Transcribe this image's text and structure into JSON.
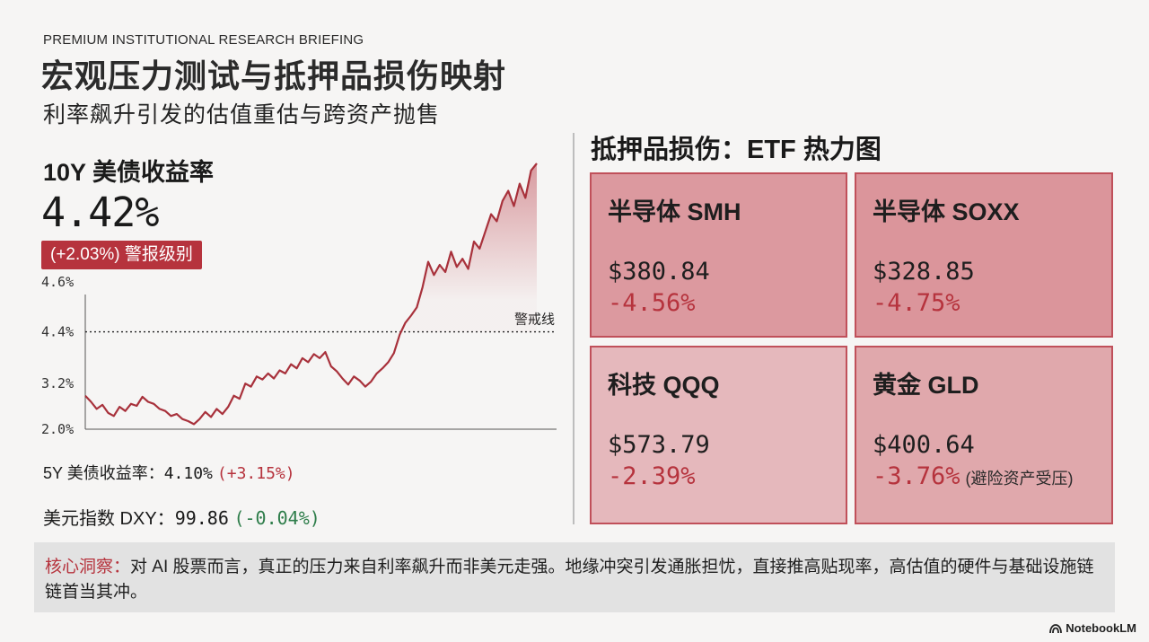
{
  "header": {
    "kicker": "PREMIUM INSTITUTIONAL RESEARCH BRIEFING",
    "title": "宏观压力测试与抵押品损伤映射",
    "subtitle": "利率飙升引发的估值重估与跨资产抛售"
  },
  "left": {
    "y10_label": "10Y 美债收益率",
    "y10_value": "4.42%",
    "alert_badge": "(+2.03%) 警报级别",
    "y5_label": "5Y 美债收益率：",
    "y5_value": "4.10%",
    "y5_change": "(+3.15%)",
    "dxy_label": "美元指数 DXY：",
    "dxy_value": "99.86",
    "dxy_change": "(-0.04%)"
  },
  "chart_data": {
    "type": "area",
    "title": "",
    "xlabel": "",
    "ylabel": "",
    "y_tick_labels": [
      "2.0%",
      "3.2%",
      "4.4%",
      "4.6%"
    ],
    "threshold_label": "警戒线",
    "threshold_tick": "4.4%",
    "series": [
      {
        "values": [
          0.33,
          0.27,
          0.2,
          0.24,
          0.16,
          0.13,
          0.22,
          0.18,
          0.25,
          0.23,
          0.32,
          0.27,
          0.25,
          0.2,
          0.18,
          0.13,
          0.15,
          0.1,
          0.08,
          0.05,
          0.1,
          0.17,
          0.12,
          0.2,
          0.15,
          0.22,
          0.33,
          0.3,
          0.45,
          0.42,
          0.52,
          0.49,
          0.55,
          0.5,
          0.58,
          0.55,
          0.64,
          0.6,
          0.7,
          0.66,
          0.74,
          0.7,
          0.76,
          0.62,
          0.57,
          0.5,
          0.44,
          0.52,
          0.48,
          0.42,
          0.47,
          0.55,
          0.6,
          0.66,
          0.75,
          0.93,
          1.05,
          1.12,
          1.2,
          1.4,
          1.65,
          1.52,
          1.62,
          1.55,
          1.75,
          1.6,
          1.68,
          1.58,
          1.85,
          1.78,
          1.95,
          2.12,
          2.05,
          2.25,
          2.35,
          2.2,
          2.42,
          2.28,
          2.55,
          2.62
        ]
      }
    ],
    "threshold_level": 0.96,
    "y_tick_levels": [
      0.0,
      0.45,
      0.96,
      1.45
    ],
    "y_range": [
      0,
      2.7
    ],
    "colors": {
      "line": "#a8313b",
      "fill": "#c0505a"
    }
  },
  "heatmap": {
    "title": "抵押品损伤：ETF 热力图",
    "tiles": [
      {
        "name": "半导体 SMH",
        "price": "$380.84",
        "change": "-4.56%",
        "note": "",
        "intensity": 0.9
      },
      {
        "name": "半导体 SOXX",
        "price": "$328.85",
        "change": "-4.75%",
        "note": "",
        "intensity": 0.95
      },
      {
        "name": "科技 QQQ",
        "price": "$573.79",
        "change": "-2.39%",
        "note": "",
        "intensity": 0.45
      },
      {
        "name": "黄金 GLD",
        "price": "$400.64",
        "change": "-3.76%",
        "note": "(避险资产受压)",
        "intensity": 0.7
      }
    ]
  },
  "insight": {
    "label": "核心洞察：",
    "text": "对 AI 股票而言，真正的压力来自利率飙升而非美元走强。地缘冲突引发通胀担忧，直接推高贴现率，高估值的硬件与基础设施链链首当其冲。"
  },
  "logo": {
    "text": "NotebookLM",
    "icon": "notebooklm-icon"
  }
}
